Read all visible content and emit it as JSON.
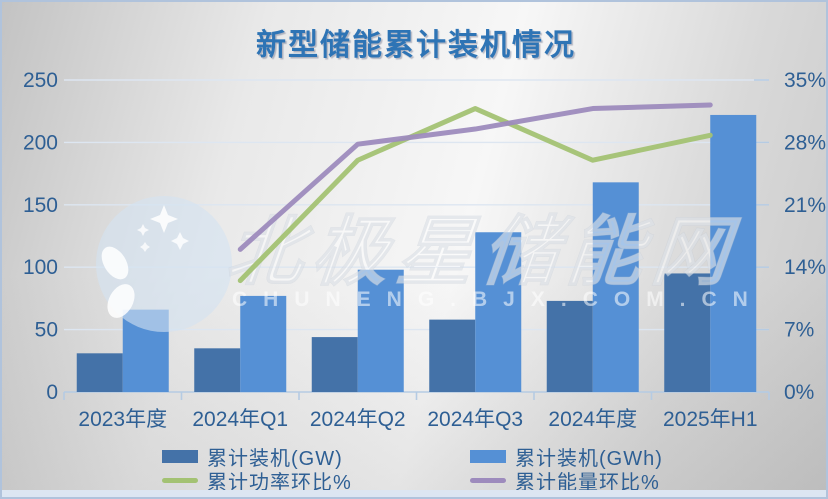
{
  "title": "新型储能累计装机情况",
  "watermark": {
    "brand": "北极星储能网",
    "url": "CHUNENG.BJX.COM.CN"
  },
  "colors": {
    "title_text": "#2e74b5",
    "axis_text": "#2e5f94",
    "bar_gw": "#4472a8",
    "bar_gwh": "#5590d5",
    "line_power": "#a3c273",
    "line_energy": "#9d8bbd",
    "gridline": "#dde6f1",
    "axis_line": "#b5cbe3",
    "panel_border": "#b0c3dc",
    "bottom_strip": "#dce6f2"
  },
  "axes": {
    "left_ticks": [
      "250",
      "200",
      "150",
      "100",
      "50",
      "0"
    ],
    "right_ticks": [
      "35%",
      "28%",
      "21%",
      "14%",
      "7%",
      "0%"
    ]
  },
  "chart_data": {
    "type": "combo-bar-line",
    "title": "新型储能累计装机情况",
    "categories": [
      "2023年度",
      "2024年Q1",
      "2024年Q2",
      "2024年Q3",
      "2024年度",
      "2025年H1"
    ],
    "left_axis_range": [
      0,
      250
    ],
    "right_axis_range_pct": [
      0,
      35
    ],
    "grid": "horizontal",
    "legend_position": "bottom",
    "series": [
      {
        "name": "累计装机(GW)",
        "type": "bar",
        "axis": "left",
        "color": "#4472a8",
        "values": [
          31,
          35,
          44,
          58,
          73,
          95
        ]
      },
      {
        "name": "累计装机(GWh)",
        "type": "bar",
        "axis": "left",
        "color": "#5590d5",
        "values": [
          66,
          77,
          98,
          128,
          168,
          222
        ]
      },
      {
        "name": "累计功率环比%",
        "type": "line",
        "axis": "right",
        "color": "#a3c273",
        "values": [
          null,
          12.5,
          26.0,
          31.8,
          26.0,
          28.8
        ]
      },
      {
        "name": "累计能量环比%",
        "type": "line",
        "axis": "right",
        "color": "#9d8bbd",
        "values": [
          null,
          16.0,
          27.8,
          29.5,
          31.8,
          32.2
        ]
      }
    ]
  }
}
